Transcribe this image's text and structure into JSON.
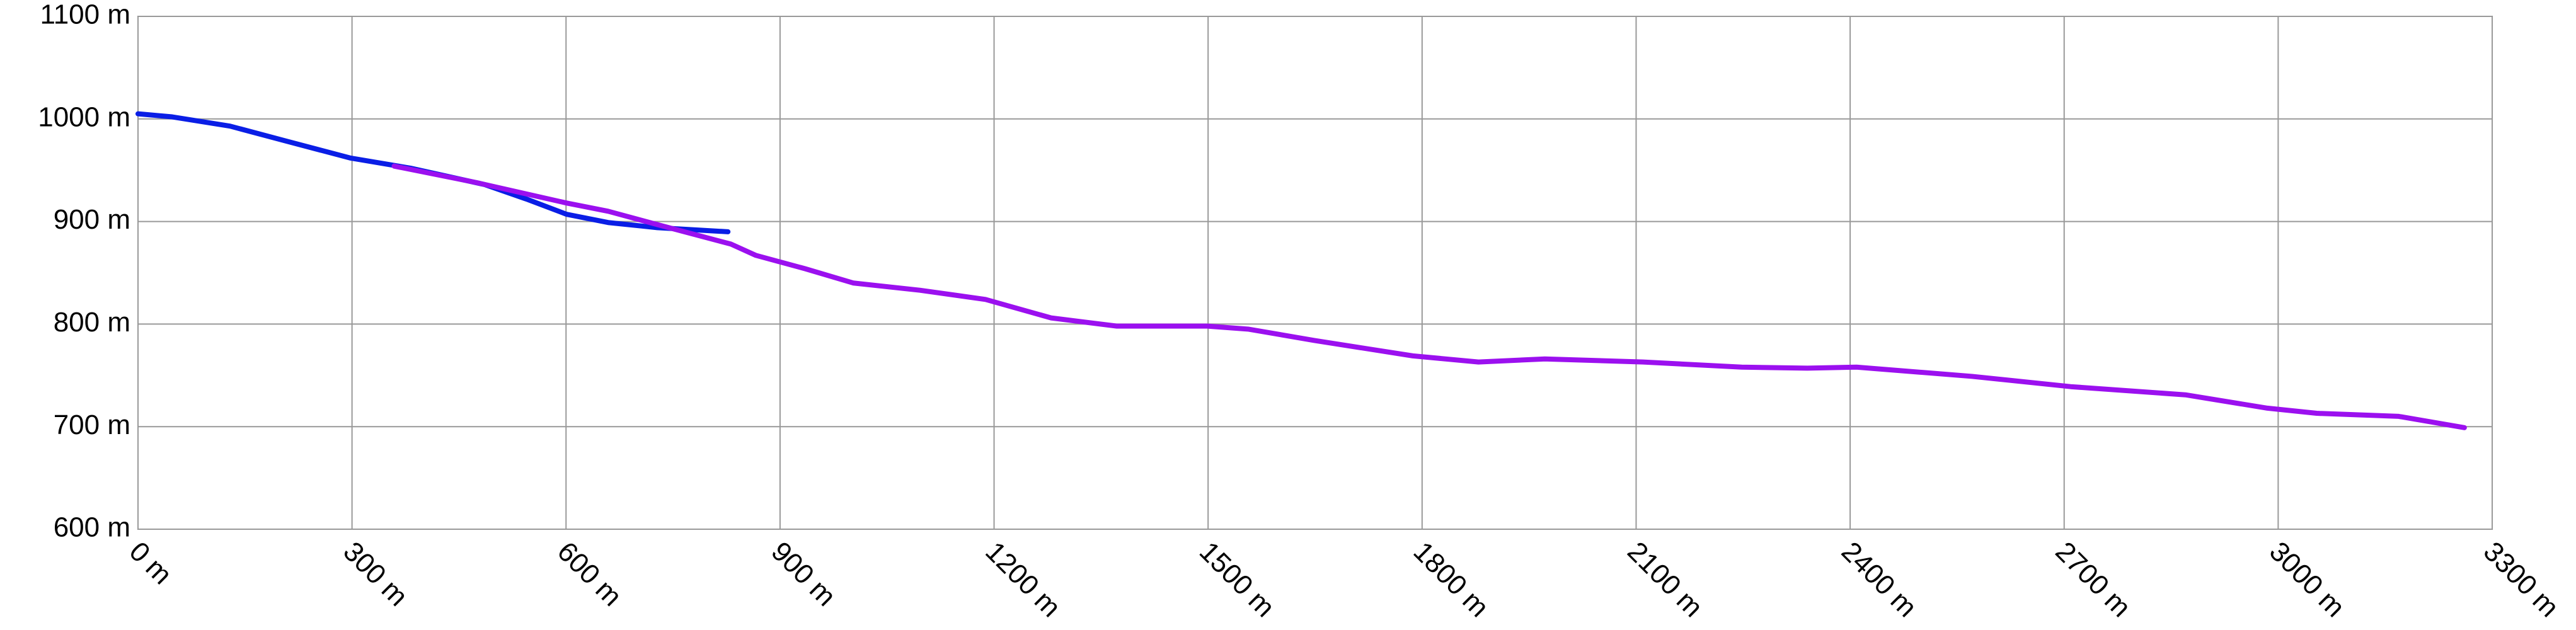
{
  "chart_data": {
    "type": "line",
    "xlim": [
      0,
      3300
    ],
    "xticks": [
      {
        "value": 0,
        "label": "0 m"
      },
      {
        "value": 300,
        "label": "300 m"
      },
      {
        "value": 600,
        "label": "600 m"
      },
      {
        "value": 900,
        "label": "900 m"
      },
      {
        "value": 1200,
        "label": "1200 m"
      },
      {
        "value": 1500,
        "label": "1500 m"
      },
      {
        "value": 1800,
        "label": "1800 m"
      },
      {
        "value": 2100,
        "label": "2100 m"
      },
      {
        "value": 2400,
        "label": "2400 m"
      },
      {
        "value": 2700,
        "label": "2700 m"
      },
      {
        "value": 3000,
        "label": "3000 m"
      },
      {
        "value": 3300,
        "label": "3300 m"
      }
    ],
    "ylim": [
      600,
      1100
    ],
    "yticks": [
      {
        "value": 600,
        "label": "600 m"
      },
      {
        "value": 700,
        "label": "700 m"
      },
      {
        "value": 800,
        "label": "800 m"
      },
      {
        "value": 900,
        "label": "900 m"
      },
      {
        "value": 1000,
        "label": "1000 m"
      },
      {
        "value": 1100,
        "label": "1100 m"
      }
    ],
    "grid": true,
    "series": [
      {
        "color": "#0a1ee6",
        "x": [
          0,
          48,
          129,
          210,
          297,
          382,
          486,
          544,
          601,
          659,
          728,
          827
        ],
        "values": [
          1005,
          1002,
          993,
          978,
          962,
          952,
          936,
          922,
          907,
          899,
          894,
          890
        ]
      },
      {
        "color": "#9b10ef",
        "x": [
          359,
          474,
          601,
          659,
          728,
          831,
          866,
          935,
          1003,
          1096,
          1188,
          1280,
          1372,
          1499,
          1557,
          1649,
          1787,
          1879,
          1972,
          2110,
          2248,
          2340,
          2409,
          2571,
          2709,
          2870,
          2985,
          3054,
          3169,
          3261
        ],
        "values": [
          954,
          938,
          918,
          910,
          897,
          878,
          867,
          854,
          840,
          833,
          824,
          806,
          798,
          798,
          795,
          784,
          769,
          763,
          766,
          763,
          758,
          757,
          758,
          749,
          739,
          731,
          718,
          713,
          710,
          699
        ]
      }
    ]
  }
}
